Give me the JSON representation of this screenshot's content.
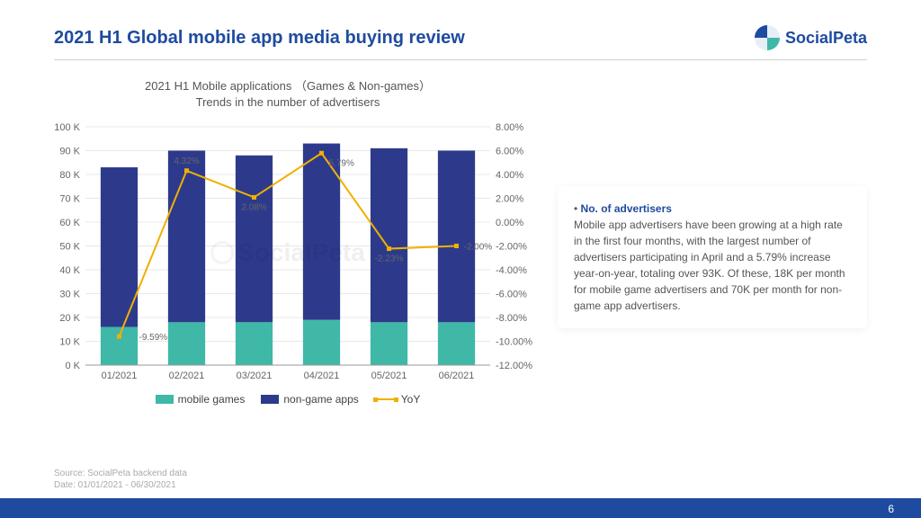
{
  "header": {
    "title": "2021 H1 Global mobile app media buying review",
    "brand": "SocialPeta"
  },
  "chart": {
    "type": "stacked-bar-with-line",
    "title_line1": "2021 H1 Mobile applications （Games & Non-games）",
    "title_line2": "Trends in the number of advertisers",
    "categories": [
      "01/2021",
      "02/2021",
      "03/2021",
      "04/2021",
      "05/2021",
      "06/2021"
    ],
    "series": {
      "mobile_games": {
        "label": "mobile games",
        "color": "#3fb8a8",
        "values": [
          16,
          18,
          18,
          19,
          18,
          18
        ]
      },
      "non_game_apps": {
        "label": "non-game apps",
        "color": "#2d3a8c",
        "values": [
          67,
          72,
          70,
          74,
          73,
          72
        ]
      },
      "yoy": {
        "label": "YoY",
        "color": "#f0b000",
        "values": [
          -9.59,
          4.32,
          2.08,
          5.79,
          -2.23,
          -2.0
        ],
        "labels": [
          "-9.59%",
          "4.32%",
          "2.08%",
          "5.79%",
          "-2.23%",
          "-2.00%"
        ]
      }
    },
    "y_left": {
      "min": 0,
      "max": 100,
      "step": 10,
      "suffix": " K"
    },
    "y_right": {
      "min": -12,
      "max": 8,
      "step": 2,
      "suffix": ".00%"
    },
    "bar_width": 0.55,
    "background_color": "#ffffff",
    "grid_color": "#e8e8e8",
    "axis_fontsize": 11,
    "watermark": "SocialPeta"
  },
  "callout": {
    "title": "No. of advertisers",
    "body": "Mobile app advertisers have been growing at a high rate in the first four months, with the largest number of advertisers participating in April and a 5.79% increase year-on-year, totaling over 93K. Of these, 18K per month for mobile game advertisers and 70K per month for non-game app advertisers."
  },
  "footer": {
    "source_line1": "Source: SocialPeta backend data",
    "source_line2": "Date: 01/01/2021 - 06/30/2021",
    "page": "6"
  },
  "colors": {
    "brand_blue": "#1e4ba0",
    "footer_bar": "#1e4ba0"
  }
}
